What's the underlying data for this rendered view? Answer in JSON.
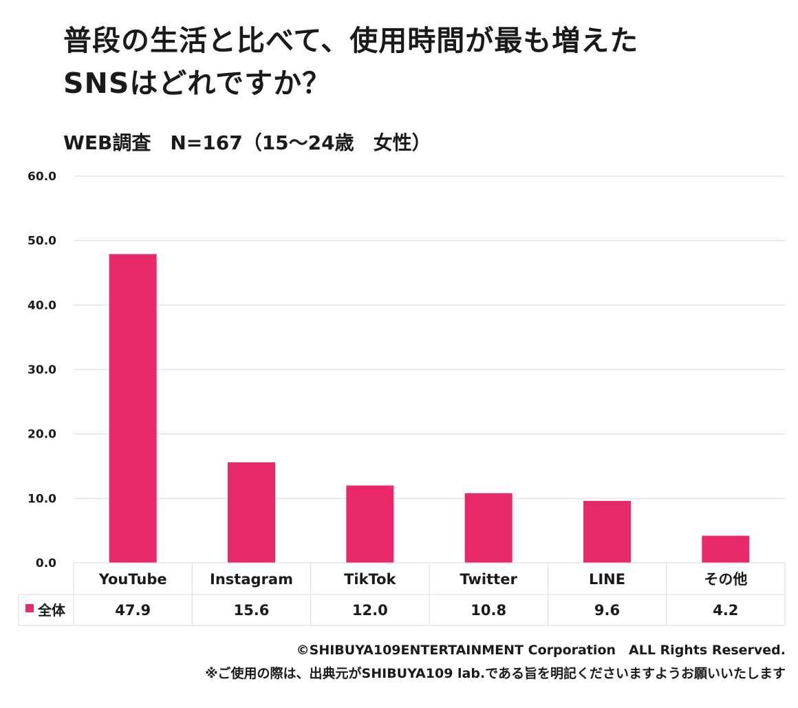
{
  "title_line1": "普段の生活と比べて、使用時間が最も増えた",
  "title_line2": "SNSはどれですか？",
  "subtitle": "WEB調査　N=167（15～24歳　女性）",
  "chart_data": {
    "type": "bar",
    "categories": [
      "YouTube",
      "Instagram",
      "TikTok",
      "Twitter",
      "LINE",
      "その他"
    ],
    "series": [
      {
        "name": "全体",
        "values": [
          47.9,
          15.6,
          12.0,
          10.8,
          9.6,
          4.2
        ],
        "color": "#e8286b"
      }
    ],
    "table_values": [
      "47.9",
      "15.6",
      "12.0",
      "10.8",
      "9.6",
      "4.2"
    ],
    "ylim": [
      0,
      60
    ],
    "yticks": [
      "0.0",
      "10.0",
      "20.0",
      "30.0",
      "40.0",
      "50.0",
      "60.0"
    ],
    "grid": true,
    "data_table": true
  },
  "footer_line1": "©SHIBUYA109ENTERTAINMENT Corporation　ALL Rights Reserved.",
  "footer_line2": "※ご使用の際は、出典元がSHIBUYA109 lab.である旨を明記くださいますようお願いいたします"
}
